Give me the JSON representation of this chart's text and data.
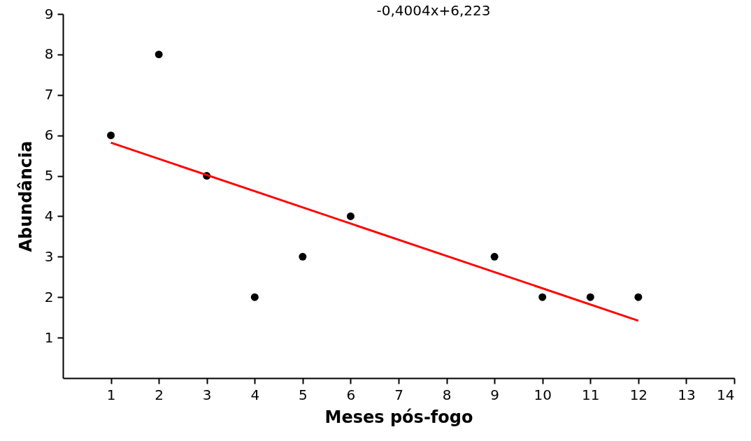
{
  "chart_data": {
    "type": "scatter",
    "xlabel": "Meses pós-fogo",
    "ylabel": "Abundância",
    "annotations": [
      "-0,4004x+6,223"
    ],
    "xlim": [
      0,
      14
    ],
    "xticks": [
      1,
      2,
      3,
      4,
      5,
      6,
      7,
      8,
      9,
      10,
      11,
      12,
      13,
      14
    ],
    "ylim": [
      0,
      9
    ],
    "yticks": [
      1,
      2,
      3,
      4,
      5,
      6,
      7,
      8,
      9
    ],
    "grid": false,
    "marker": "circle",
    "series": [
      {
        "color": "#000000",
        "x": [
          1,
          2,
          3,
          4,
          5,
          6,
          9,
          10,
          11,
          12
        ],
        "values": [
          6,
          8,
          5,
          2,
          3,
          4,
          3,
          2,
          2,
          2
        ]
      },
      {
        "type": "line",
        "color": "#ff0000",
        "x": [
          1,
          12
        ],
        "values": [
          5.82,
          1.42
        ],
        "marker": "none",
        "line_style": "solid"
      }
    ]
  }
}
